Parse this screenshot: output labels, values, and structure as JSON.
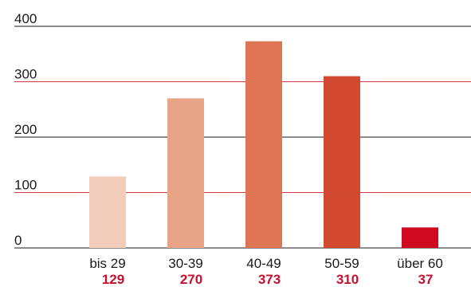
{
  "chart_data": {
    "type": "bar",
    "title": "",
    "xlabel": "",
    "ylabel": "",
    "categories": [
      "bis 29",
      "30-39",
      "40-49",
      "50-59",
      "über 60"
    ],
    "values": [
      129,
      270,
      373,
      310,
      37
    ],
    "value_labels": [
      "129",
      "270",
      "373",
      "310",
      "37"
    ],
    "ylim": [
      0,
      400
    ],
    "yticks": [
      0,
      100,
      200,
      300,
      400
    ],
    "ytick_labels": [
      "0",
      "100",
      "200",
      "300",
      "400"
    ],
    "bar_colors": [
      "#f2cdbb",
      "#e7a486",
      "#de7656",
      "#d44a30",
      "#cf0a20"
    ],
    "grid": true,
    "grid_colors": {
      "0": "#1a1a1a",
      "100": "#d43a45",
      "200": "#1a1a1a",
      "300": "#d43a45",
      "400": "#1a1a1a"
    },
    "value_label_color": "#c8102e"
  }
}
